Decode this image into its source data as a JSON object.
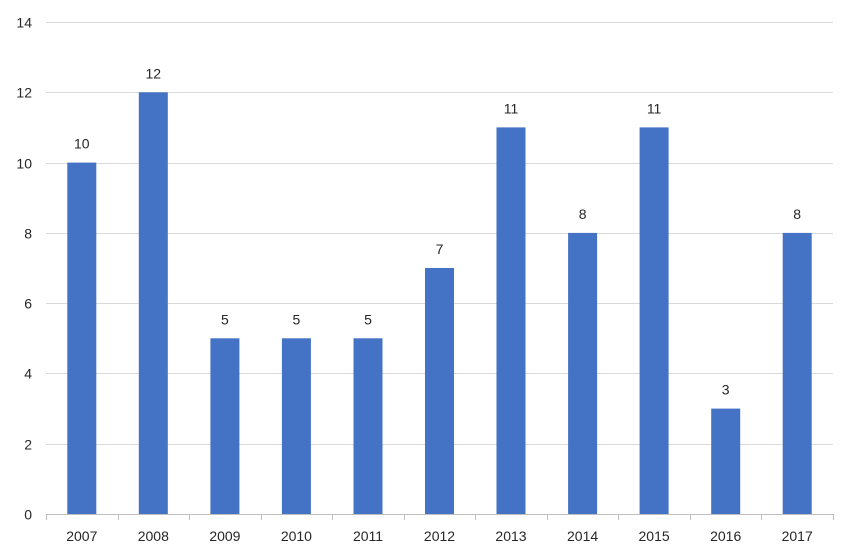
{
  "chart_data": {
    "type": "bar",
    "title": "",
    "xlabel": "",
    "ylabel": "",
    "categories": [
      "2007",
      "2008",
      "2009",
      "2010",
      "2011",
      "2012",
      "2013",
      "2014",
      "2015",
      "2016",
      "2017"
    ],
    "values": [
      10,
      12,
      5,
      5,
      5,
      7,
      11,
      8,
      11,
      3,
      8
    ],
    "ylim": [
      0,
      14
    ],
    "yticks": [
      0,
      2,
      4,
      6,
      8,
      10,
      12,
      14
    ],
    "grid": true,
    "legend": "none",
    "bar_color": "#4472c4",
    "data_labels": true
  }
}
